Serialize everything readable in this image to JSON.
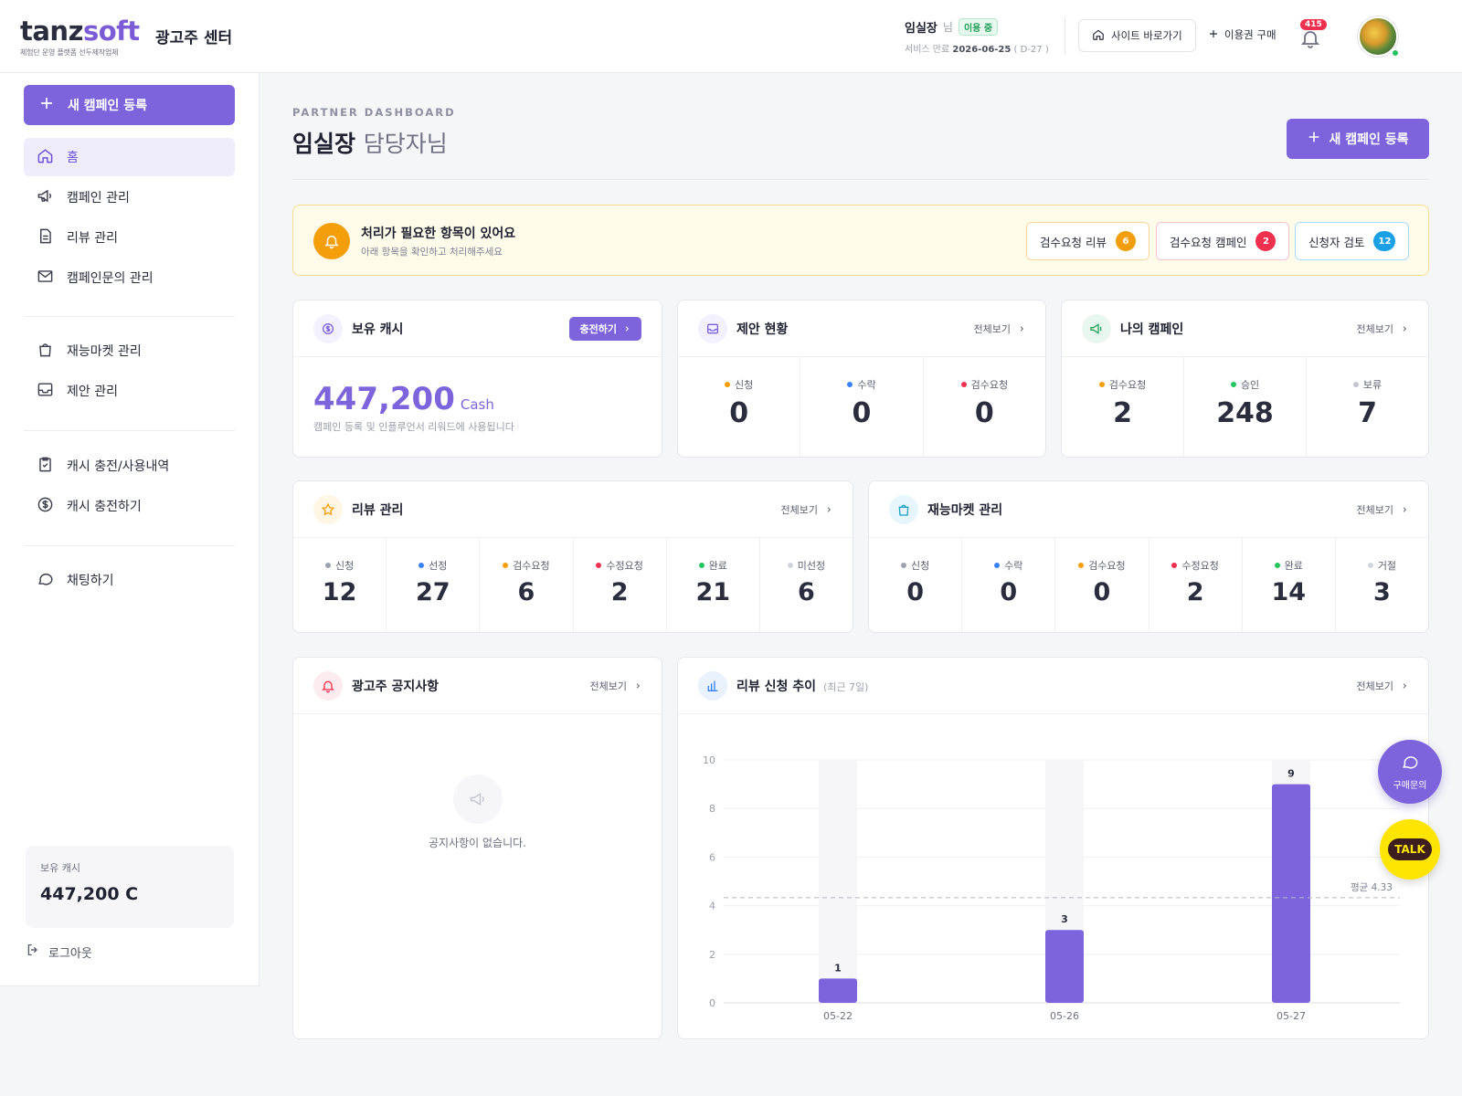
{
  "brand": {
    "logo_prefix": "tanz",
    "logo_suffix": "soft",
    "tagline": "체험단 운영 플랫폼 선두제작업체",
    "center": "광고주 센터"
  },
  "header": {
    "user_name": "임실장",
    "user_suffix": "님",
    "status_badge": "이용 중",
    "expiry_label": "서비스 만료",
    "expiry_date": "2026-06-25",
    "expiry_dday": "( D-27 )",
    "site_button": "사이트 바로가기",
    "buy_link": "이용권 구매",
    "notification_count": "415"
  },
  "sidebar": {
    "new_campaign": "새 캠페인 등록",
    "items": [
      {
        "label": "홈",
        "icon": "home-icon"
      },
      {
        "label": "캠페인 관리",
        "icon": "megaphone-icon"
      },
      {
        "label": "리뷰 관리",
        "icon": "document-icon"
      },
      {
        "label": "캠페인문의 관리",
        "icon": "mail-icon"
      },
      {
        "label": "재능마켓 관리",
        "icon": "shopping-bag-icon"
      },
      {
        "label": "제안 관리",
        "icon": "inbox-icon"
      },
      {
        "label": "캐시 충전/사용내역",
        "icon": "clipboard-check-icon"
      },
      {
        "label": "캐시 충전하기",
        "icon": "dollar-circle-icon"
      },
      {
        "label": "채팅하기",
        "icon": "chat-bubble-icon"
      }
    ],
    "cash_label": "보유 캐시",
    "cash_value": "447,200 C",
    "logout": "로그아웃"
  },
  "main": {
    "section_label": "PARTNER DASHBOARD",
    "title_name": "임실장",
    "title_suffix": "담당자님",
    "new_campaign": "새 캠페인 등록"
  },
  "alert": {
    "title": "처리가 필요한 항목이 있어요",
    "subtitle": "아래 항목을 확인하고 처리해주세요",
    "chips": [
      {
        "label": "검수요청 리뷰",
        "count": "6",
        "color": "#f59e0b",
        "border": "#f7d79a"
      },
      {
        "label": "검수요청 캠페인",
        "count": "2",
        "color": "#f0304f",
        "border": "#f6c2cb"
      },
      {
        "label": "신청자 검토",
        "count": "12",
        "color": "#1aa0e6",
        "border": "#a9dcf5"
      }
    ]
  },
  "cash_card": {
    "title": "보유 캐시",
    "charge": "충전하기",
    "amount": "447,200",
    "unit": "Cash",
    "desc": "캠페인 등록 및 인플루언서 리워드에 사용됩니다"
  },
  "proposal_card": {
    "title": "제안 현황",
    "more": "전체보기",
    "stats": [
      {
        "label": "신청",
        "value": "0",
        "dot": "#f59e0b"
      },
      {
        "label": "수락",
        "value": "0",
        "dot": "#3b82f6"
      },
      {
        "label": "검수요청",
        "value": "0",
        "dot": "#f0304f"
      }
    ]
  },
  "my_campaign_card": {
    "title": "나의 캠페인",
    "more": "전체보기",
    "stats": [
      {
        "label": "검수요청",
        "value": "2",
        "dot": "#f59e0b"
      },
      {
        "label": "승인",
        "value": "248",
        "dot": "#22c55e"
      },
      {
        "label": "보류",
        "value": "7",
        "dot": "#c3c5cf"
      }
    ]
  },
  "review_card": {
    "title": "리뷰 관리",
    "more": "전체보기",
    "stats": [
      {
        "label": "신청",
        "value": "12",
        "dot": "#9ca3af"
      },
      {
        "label": "선정",
        "value": "27",
        "dot": "#3b82f6"
      },
      {
        "label": "검수요청",
        "value": "6",
        "dot": "#f59e0b"
      },
      {
        "label": "수정요청",
        "value": "2",
        "dot": "#f0304f"
      },
      {
        "label": "완료",
        "value": "21",
        "dot": "#22c55e"
      },
      {
        "label": "미선정",
        "value": "6",
        "dot": "#d1d5db"
      }
    ]
  },
  "talent_card": {
    "title": "재능마켓 관리",
    "more": "전체보기",
    "stats": [
      {
        "label": "신청",
        "value": "0",
        "dot": "#9ca3af"
      },
      {
        "label": "수락",
        "value": "0",
        "dot": "#3b82f6"
      },
      {
        "label": "검수요청",
        "value": "0",
        "dot": "#f59e0b"
      },
      {
        "label": "수정요청",
        "value": "2",
        "dot": "#f0304f"
      },
      {
        "label": "완료",
        "value": "14",
        "dot": "#22c55e"
      },
      {
        "label": "거절",
        "value": "3",
        "dot": "#d1d5db"
      }
    ]
  },
  "notice_card": {
    "title": "광고주 공지사항",
    "more": "전체보기",
    "empty": "공지사항이 없습니다."
  },
  "trend_card": {
    "title": "리뷰 신청 추이",
    "hint": "(최근 7일)",
    "more": "전체보기"
  },
  "chart_data": {
    "type": "bar",
    "categories": [
      "05-22",
      "05-26",
      "05-27"
    ],
    "values": [
      1,
      3,
      9
    ],
    "ylim": [
      0,
      10
    ],
    "yticks": [
      0,
      2,
      4,
      6,
      8,
      10
    ],
    "average": 4.33,
    "average_label": "평균 4.33",
    "bar_color": "#7d63dc"
  },
  "fabs": {
    "inquiry": "구매문의",
    "talk": "TALK"
  },
  "colors": {
    "accent": "#7d63dc",
    "alert_bg": "#fffbea"
  }
}
